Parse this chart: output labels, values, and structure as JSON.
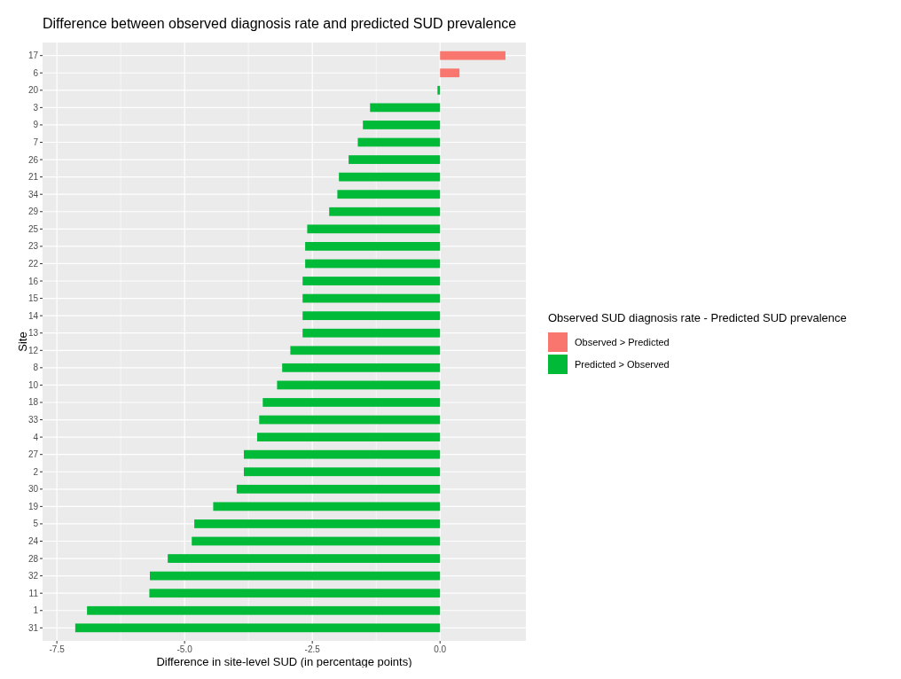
{
  "chart_data": {
    "type": "bar",
    "orientation": "horizontal",
    "stacked": true,
    "title": "Difference between observed diagnosis rate and predicted SUD prevalence",
    "xlabel": "Difference in site-level SUD (in percentage points)",
    "ylabel": "Site",
    "legend_title": "Observed SUD diagnosis rate - Predicted SUD prevalence",
    "categories": [
      "17",
      "6",
      "20",
      "3",
      "9",
      "7",
      "26",
      "21",
      "34",
      "29",
      "25",
      "23",
      "22",
      "16",
      "15",
      "14",
      "13",
      "12",
      "8",
      "10",
      "18",
      "33",
      "4",
      "27",
      "2",
      "30",
      "19",
      "5",
      "24",
      "28",
      "32",
      "11",
      "1",
      "31"
    ],
    "series": [
      {
        "name": "Observed > Predicted",
        "color": "#f8766d",
        "values": [
          1.28,
          0.38,
          null,
          null,
          null,
          null,
          null,
          null,
          null,
          null,
          null,
          null,
          null,
          null,
          null,
          null,
          null,
          null,
          null,
          null,
          null,
          null,
          null,
          null,
          null,
          null,
          null,
          null,
          null,
          null,
          null,
          null,
          null,
          null
        ]
      },
      {
        "name": "Predicted > Observed",
        "color": "#00ba38",
        "values": [
          null,
          null,
          -0.05,
          -1.37,
          -1.51,
          -1.61,
          -1.79,
          -1.98,
          -2.01,
          -2.17,
          -2.6,
          -2.64,
          -2.64,
          -2.69,
          -2.69,
          -2.69,
          -2.69,
          -2.93,
          -3.09,
          -3.19,
          -3.47,
          -3.54,
          -3.58,
          -3.84,
          -3.84,
          -3.98,
          -4.44,
          -4.81,
          -4.86,
          -5.33,
          -5.68,
          -5.69,
          -6.91,
          -7.14
        ]
      }
    ],
    "xlim": [
      -7.78,
      1.68
    ],
    "xticks": [
      -7.5,
      {
        "value": -5,
        "label": "-5.0"
      },
      -2.5,
      {
        "value": 0,
        "label": "0.0"
      }
    ],
    "grid": true,
    "legend": "right"
  }
}
